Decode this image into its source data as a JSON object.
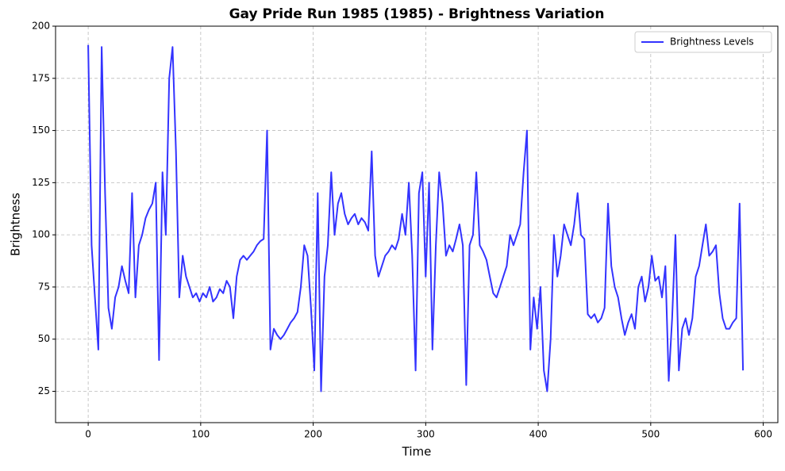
{
  "chart_data": {
    "type": "line",
    "title": "Gay Pride Run 1985 (1985) - Brightness Variation",
    "x_label": "Time",
    "y_label": "Brightness",
    "x": [
      0,
      3,
      6,
      9,
      12,
      15,
      18,
      21,
      24,
      27,
      30,
      33,
      36,
      39,
      42,
      45,
      48,
      51,
      54,
      57,
      60,
      63,
      66,
      69,
      72,
      75,
      78,
      81,
      84,
      87,
      90,
      93,
      96,
      99,
      102,
      105,
      108,
      111,
      114,
      117,
      120,
      123,
      126,
      129,
      132,
      135,
      138,
      141,
      144,
      147,
      150,
      153,
      156,
      159,
      162,
      165,
      168,
      171,
      174,
      177,
      180,
      183,
      186,
      189,
      192,
      195,
      198,
      201,
      204,
      207,
      210,
      213,
      216,
      219,
      222,
      225,
      228,
      231,
      234,
      237,
      240,
      243,
      246,
      249,
      252,
      255,
      258,
      261,
      264,
      267,
      270,
      273,
      276,
      279,
      282,
      285,
      288,
      291,
      294,
      297,
      300,
      303,
      306,
      309,
      312,
      315,
      318,
      321,
      324,
      327,
      330,
      333,
      336,
      339,
      342,
      345,
      348,
      351,
      354,
      357,
      360,
      363,
      366,
      369,
      372,
      375,
      378,
      381,
      384,
      387,
      390,
      393,
      396,
      399,
      402,
      405,
      408,
      411,
      414,
      417,
      420,
      423,
      426,
      429,
      432,
      435,
      438,
      441,
      444,
      447,
      450,
      453,
      456,
      459,
      462,
      465,
      468,
      471,
      474,
      477,
      480,
      483,
      486,
      489,
      492,
      495,
      498,
      501,
      504,
      507,
      510,
      513,
      516,
      519,
      522,
      525,
      528,
      531,
      534,
      537,
      540,
      543,
      546,
      549,
      552,
      555,
      558,
      561,
      564,
      567,
      570,
      573,
      576,
      579,
      582
    ],
    "series": [
      {
        "name": "Brightness Levels",
        "color": "#3333ff",
        "values": [
          191,
          95,
          70,
          45,
          190,
          120,
          65,
          55,
          70,
          75,
          85,
          78,
          72,
          120,
          70,
          95,
          100,
          108,
          112,
          115,
          125,
          40,
          130,
          100,
          175,
          190,
          140,
          70,
          90,
          80,
          75,
          70,
          72,
          68,
          72,
          70,
          75,
          68,
          70,
          74,
          72,
          78,
          75,
          60,
          80,
          88,
          90,
          88,
          90,
          92,
          95,
          97,
          98,
          150,
          45,
          55,
          52,
          50,
          52,
          55,
          58,
          60,
          63,
          75,
          95,
          90,
          65,
          35,
          120,
          25,
          80,
          95,
          130,
          100,
          115,
          120,
          110,
          105,
          108,
          110,
          105,
          108,
          106,
          102,
          140,
          90,
          80,
          85,
          90,
          92,
          95,
          93,
          98,
          110,
          100,
          125,
          90,
          35,
          120,
          130,
          80,
          125,
          45,
          95,
          130,
          115,
          90,
          95,
          92,
          98,
          105,
          95,
          28,
          95,
          100,
          130,
          95,
          92,
          88,
          80,
          72,
          70,
          75,
          80,
          85,
          100,
          95,
          100,
          105,
          130,
          150,
          45,
          70,
          55,
          75,
          35,
          25,
          50,
          100,
          80,
          90,
          105,
          100,
          95,
          105,
          120,
          100,
          98,
          62,
          60,
          62,
          58,
          60,
          65,
          115,
          85,
          75,
          70,
          60,
          52,
          58,
          62,
          55,
          75,
          80,
          68,
          75,
          90,
          78,
          80,
          70,
          85,
          30,
          60,
          100,
          35,
          55,
          60,
          52,
          60,
          80,
          85,
          95,
          105,
          90,
          92,
          95,
          72,
          60,
          55,
          55,
          58,
          60,
          115,
          35
        ]
      }
    ],
    "xlim": [
      -29,
      613
    ],
    "ylim": [
      10,
      200
    ],
    "xticks": [
      0,
      100,
      200,
      300,
      400,
      500,
      600
    ],
    "yticks": [
      25,
      50,
      75,
      100,
      125,
      150,
      175,
      200
    ],
    "grid": true,
    "legend": "upper right"
  }
}
